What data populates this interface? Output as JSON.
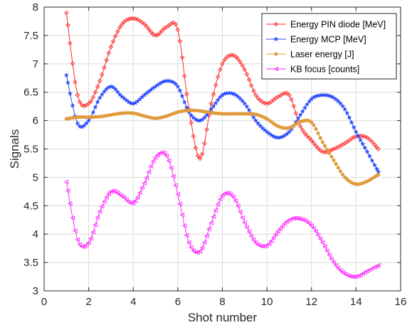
{
  "chart_data": {
    "type": "line",
    "xlabel": "Shot number",
    "ylabel": "Signals",
    "xlim": [
      0,
      16
    ],
    "ylim": [
      3,
      8
    ],
    "x_ticks": [
      "0",
      "2",
      "4",
      "6",
      "8",
      "10",
      "12",
      "14",
      "16"
    ],
    "y_ticks": [
      "3",
      "3.5",
      "4",
      "4.5",
      "5",
      "5.5",
      "6",
      "6.5",
      "7",
      "7.5",
      "8"
    ],
    "grid": true,
    "legend_position": "top-right",
    "series": [
      {
        "name": "Energy PIN diode [MeV]",
        "color": "#ff2a2a",
        "marker": "diamond",
        "x": [
          1,
          1.5,
          2,
          2.5,
          3,
          3.5,
          4,
          4.5,
          5,
          5.5,
          6,
          6.5,
          7,
          7.5,
          8,
          8.5,
          9,
          9.5,
          10,
          10.5,
          11,
          11.5,
          12,
          12.5,
          13,
          13.5,
          14,
          14.5,
          15
        ],
        "y": [
          7.9,
          6.45,
          6.3,
          6.7,
          7.3,
          7.7,
          7.8,
          7.7,
          7.5,
          7.65,
          7.6,
          6.2,
          5.33,
          6.3,
          7.0,
          7.15,
          6.9,
          6.45,
          6.3,
          6.42,
          6.45,
          5.9,
          5.65,
          5.45,
          5.5,
          5.6,
          5.72,
          5.7,
          5.5
        ]
      },
      {
        "name": "Energy MCP [MeV]",
        "color": "#2a4bff",
        "marker": "star",
        "x": [
          1,
          1.5,
          2,
          2.5,
          3,
          3.5,
          4,
          4.5,
          5,
          5.5,
          6,
          6.5,
          7,
          7.5,
          8,
          8.5,
          9,
          9.5,
          10,
          10.5,
          11,
          11.5,
          12,
          12.5,
          13,
          13.5,
          14,
          14.5,
          15
        ],
        "y": [
          6.8,
          5.95,
          6.0,
          6.4,
          6.6,
          6.42,
          6.3,
          6.45,
          6.6,
          6.7,
          6.6,
          6.15,
          6.0,
          6.2,
          6.45,
          6.47,
          6.3,
          6.0,
          5.8,
          5.7,
          5.8,
          6.1,
          6.38,
          6.45,
          6.4,
          6.2,
          5.8,
          5.45,
          5.1
        ]
      },
      {
        "name": "Laser energy [J]",
        "color": "#e09b3d",
        "marker": "circle",
        "x": [
          1,
          1.5,
          2,
          2.5,
          3,
          3.5,
          4,
          4.5,
          5,
          5.5,
          6,
          6.5,
          7,
          7.5,
          8,
          8.5,
          9,
          9.5,
          10,
          10.5,
          11,
          11.5,
          12,
          12.5,
          13,
          13.5,
          14,
          14.5,
          15
        ],
        "y": [
          6.03,
          6.06,
          6.06,
          6.07,
          6.1,
          6.13,
          6.13,
          6.08,
          6.04,
          6.08,
          6.15,
          6.18,
          6.17,
          6.14,
          6.12,
          6.12,
          6.12,
          6.11,
          6.03,
          5.9,
          5.87,
          5.98,
          5.97,
          5.62,
          5.3,
          5.0,
          4.88,
          4.93,
          5.05
        ]
      },
      {
        "name": "KB focus [counts]",
        "color": "#ff2aff",
        "marker": "triangle-left",
        "x": [
          1,
          1.5,
          2,
          2.5,
          3,
          3.5,
          4,
          4.5,
          5,
          5.5,
          6,
          6.5,
          7,
          7.5,
          8,
          8.5,
          9,
          9.5,
          10,
          10.5,
          11,
          11.5,
          12,
          12.5,
          13,
          13.5,
          14,
          14.5,
          15
        ],
        "y": [
          4.92,
          3.9,
          3.85,
          4.4,
          4.75,
          4.67,
          4.55,
          4.9,
          5.35,
          5.38,
          4.7,
          3.85,
          3.7,
          4.2,
          4.68,
          4.65,
          4.2,
          3.85,
          3.8,
          4.05,
          4.25,
          4.27,
          4.15,
          3.85,
          3.5,
          3.3,
          3.25,
          3.35,
          3.45
        ]
      }
    ]
  }
}
